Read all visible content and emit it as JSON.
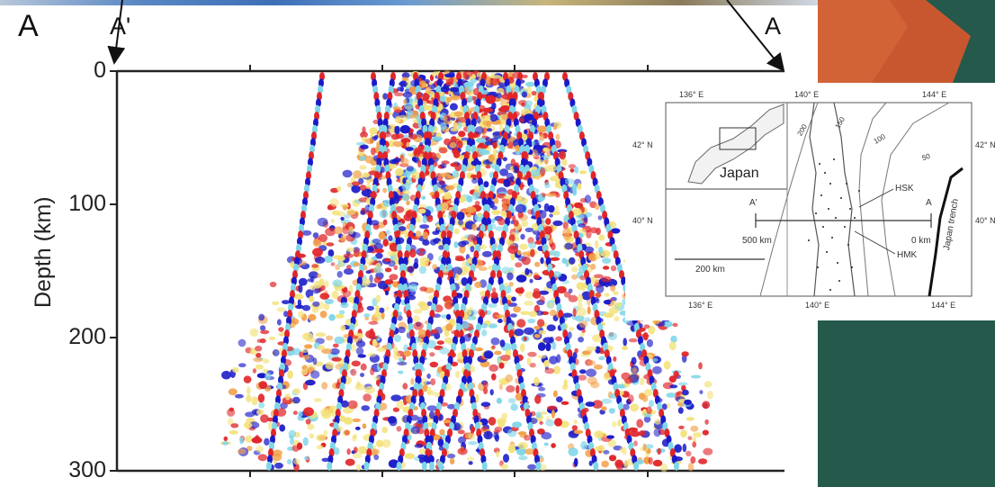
{
  "section_labels": {
    "left_A": "A",
    "left_A_prime": "A'",
    "right_A": "A"
  },
  "seismic": {
    "ylabel": "Depth (km)",
    "y_ticks": [
      "0",
      "100",
      "200",
      "300"
    ],
    "ylim": [
      0,
      300
    ],
    "colors": {
      "red": "#e0262a",
      "blue": "#1a1ac8",
      "yellow": "#f3e27a",
      "cyan": "#7fd6e8",
      "orange": "#f2a14a"
    }
  },
  "inset_map": {
    "lon_labels_top": [
      "136° E",
      "140° E",
      "144° E"
    ],
    "lon_labels_bottom": [
      "136° E",
      "140° E",
      "144° E"
    ],
    "lat_labels_left": [
      "42° N",
      "40° N"
    ],
    "lat_labels_right": [
      "42° N",
      "40° N"
    ],
    "country_label": "Japan",
    "section_start": "A'",
    "section_end": "A",
    "distance_left": "500 km",
    "distance_right": "0 km",
    "scale_bar": "200 km",
    "stations": [
      "HSK",
      "HMK"
    ],
    "trench_label": "Japan trench",
    "contours": [
      "200",
      "150",
      "100",
      "50"
    ]
  },
  "background_colors": {
    "panel": "#24594b",
    "panel_orange": "#c8572f"
  }
}
